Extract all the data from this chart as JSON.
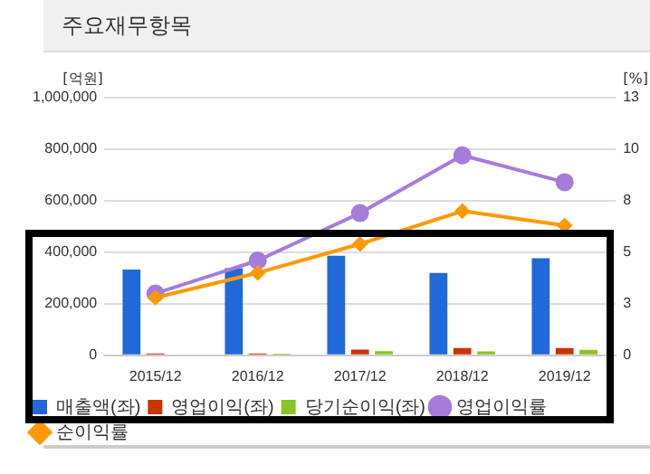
{
  "chart_data": {
    "type": "bar",
    "title": "주요재무항목",
    "ylabel": "[억원]",
    "y2label": "[%]",
    "categories": [
      "2015/12",
      "2016/12",
      "2017/12",
      "2018/12",
      "2019/12"
    ],
    "series": [
      {
        "name": "매출액(좌)",
        "color": "#2169d8",
        "values": [
          333000,
          338000,
          386000,
          320000,
          377000
        ]
      },
      {
        "name": "영업이익(좌)",
        "color": "#cc3300",
        "values": [
          7000,
          7000,
          22000,
          28000,
          28000
        ]
      },
      {
        "name": "당기순이익(좌)",
        "color": "#88c425",
        "values": [
          null,
          6000,
          16000,
          15000,
          21000
        ]
      },
      {
        "name": "영업이익률",
        "type": "line",
        "axis": "y2",
        "marker": "circle",
        "color": "#a67cdb",
        "values": [
          3.0,
          4.6,
          6.9,
          9.7,
          8.4
        ]
      },
      {
        "name": "순이익률",
        "type": "line",
        "axis": "y2",
        "marker": "diamond",
        "color": "#ff9900",
        "values": [
          2.8,
          4.0,
          5.4,
          7.0,
          6.3
        ]
      }
    ],
    "ylim": [
      0,
      1000000
    ],
    "yticks": [
      0,
      {
        "value": 200000,
        "label": "200,000"
      },
      {
        "value": 400000,
        "label": "400,000"
      },
      {
        "value": 600000,
        "label": "600,000"
      },
      {
        "value": 800000,
        "label": "800,000"
      },
      {
        "value": 1000000,
        "label": "1,000,000"
      }
    ],
    "y2lim": [
      0,
      12.5
    ],
    "y2ticks": [
      0,
      {
        "value": 2.5,
        "label": "3"
      },
      5,
      {
        "value": 7.5,
        "label": "8"
      },
      10,
      {
        "value": 12.5,
        "label": "13"
      }
    ],
    "grid": "y",
    "legend": "bottom"
  }
}
